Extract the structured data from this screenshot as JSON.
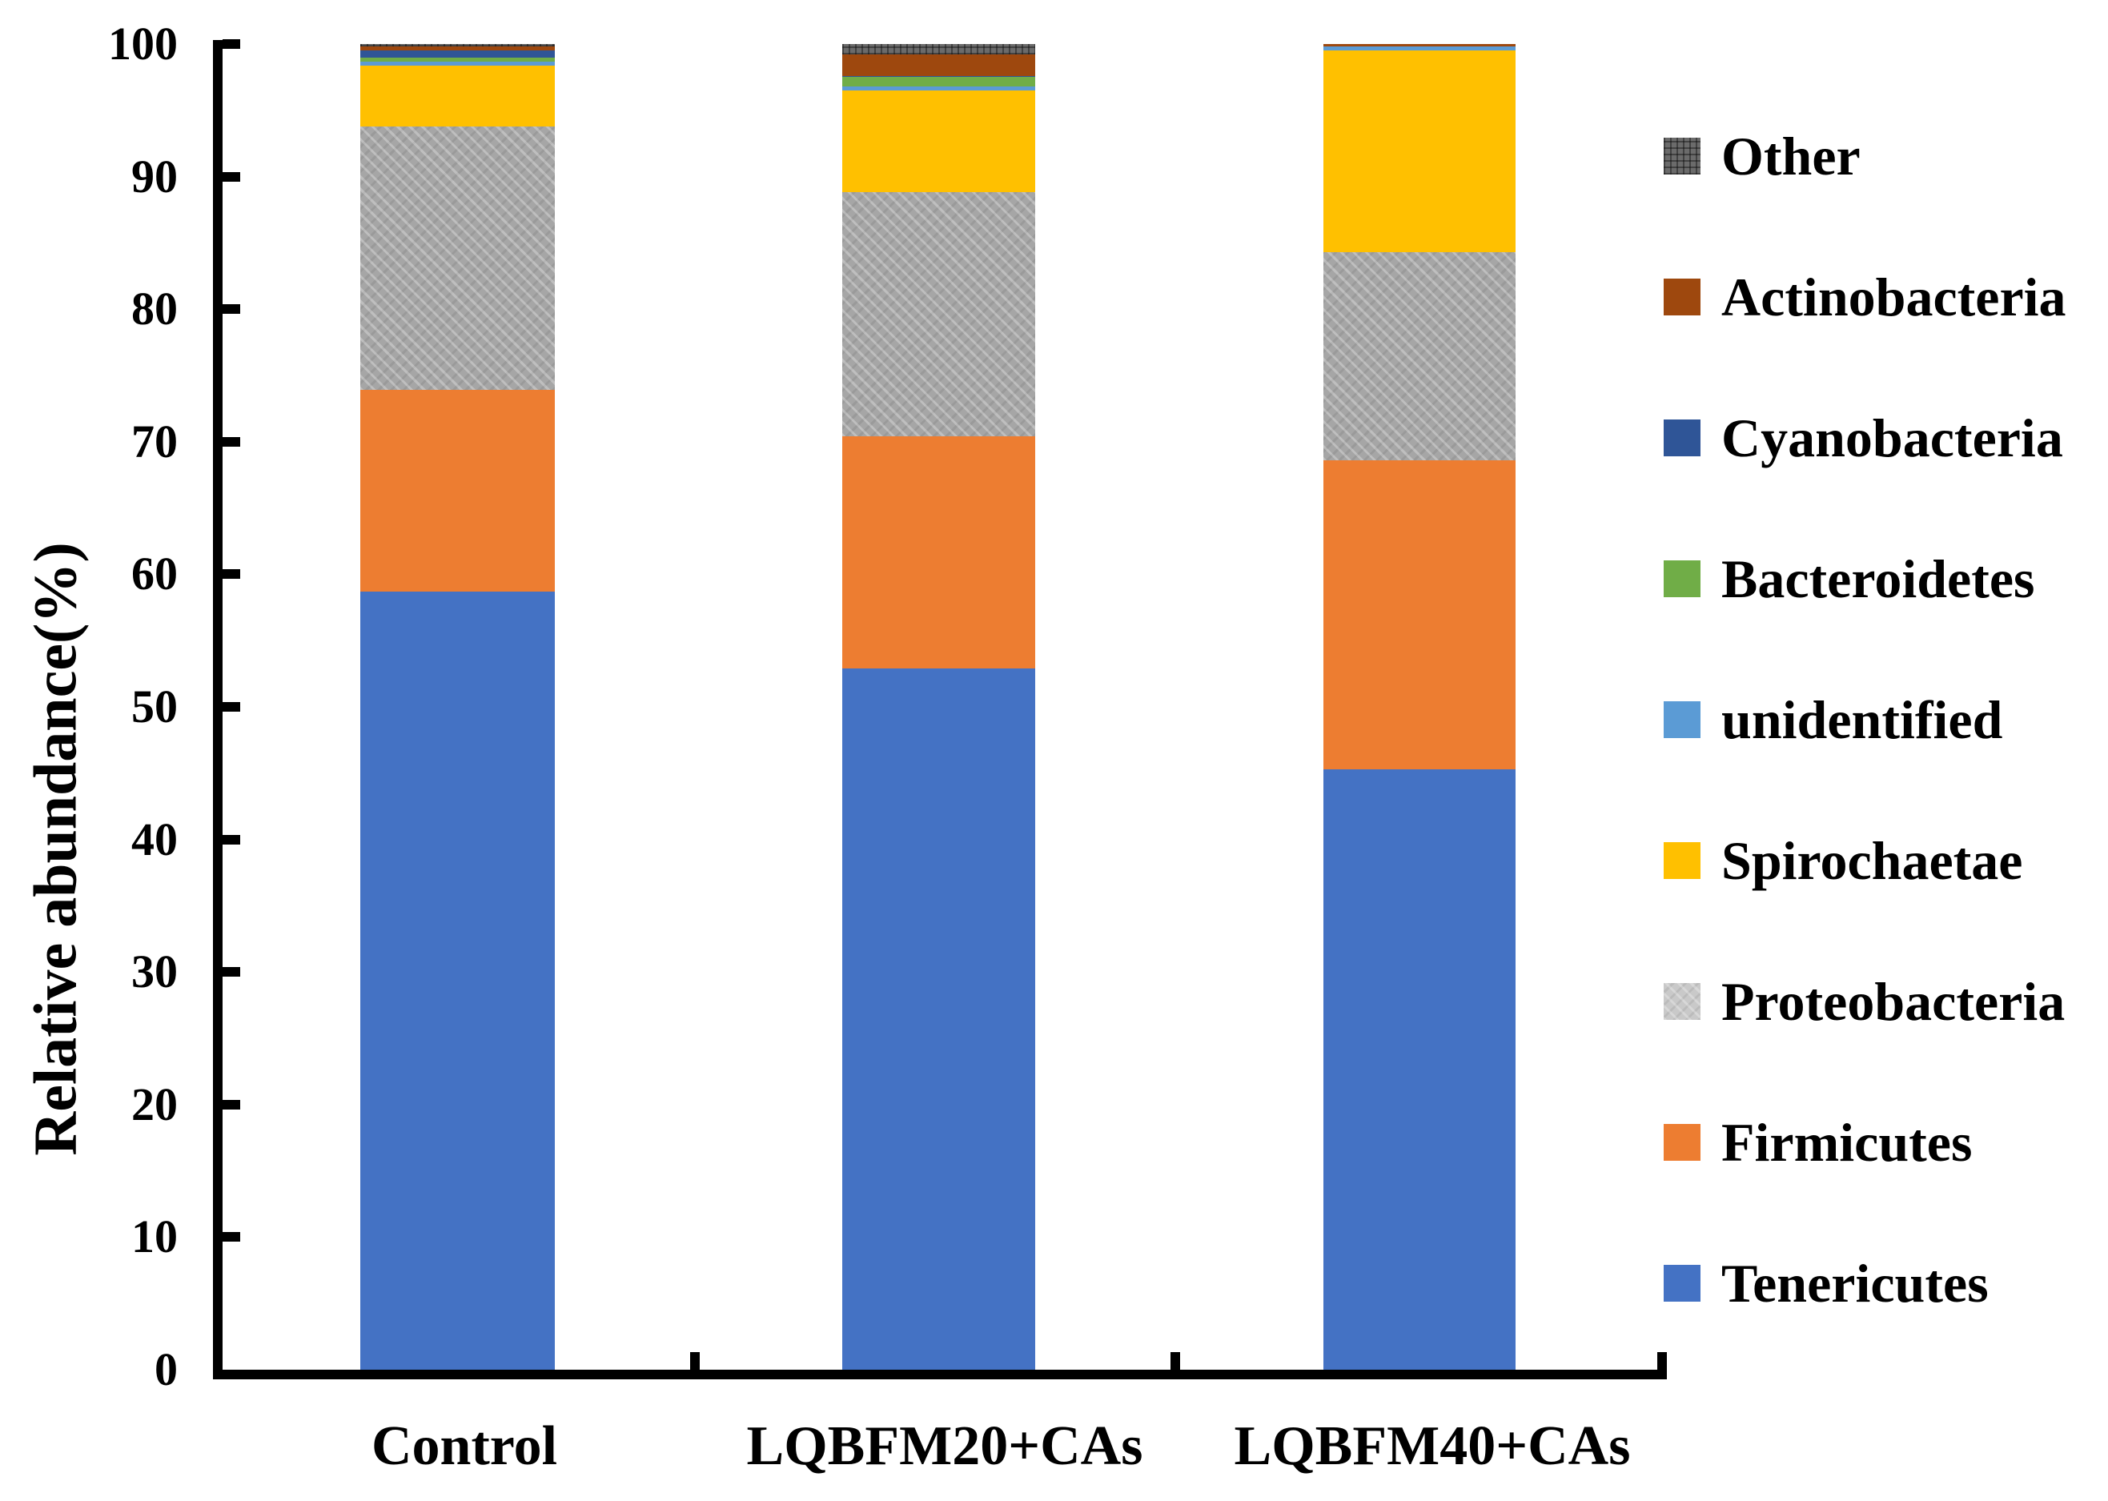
{
  "chart_data": {
    "type": "bar",
    "stacked": true,
    "title": "",
    "xlabel": "",
    "ylabel": "Relative abundance(%)",
    "ylim": [
      0,
      100
    ],
    "yticks": [
      0,
      10,
      20,
      30,
      40,
      50,
      60,
      70,
      80,
      90,
      100
    ],
    "grid": false,
    "legend_position": "right",
    "categories": [
      "Control",
      "LQBFM20+CAs",
      "LQBFM40+CAs"
    ],
    "series": [
      {
        "name": "Tenericutes",
        "color": "#4472C4",
        "pattern": "none",
        "values": [
          58.7,
          52.9,
          45.3
        ]
      },
      {
        "name": "Firmicutes",
        "color": "#ED7D31",
        "pattern": "none",
        "values": [
          15.2,
          17.5,
          23.3
        ]
      },
      {
        "name": "Proteobacteria",
        "color": "#A6A6A6",
        "pattern": "hatch",
        "values": [
          19.9,
          18.4,
          15.7
        ]
      },
      {
        "name": "Spirochaetae",
        "color": "#FFC000",
        "pattern": "none",
        "values": [
          4.6,
          7.7,
          15.2
        ]
      },
      {
        "name": "unidentified",
        "color": "#5B9BD5",
        "pattern": "none",
        "values": [
          0.25,
          0.3,
          0.3
        ]
      },
      {
        "name": "Bacteroidetes",
        "color": "#70AD47",
        "pattern": "none",
        "values": [
          0.3,
          0.75,
          0.0
        ]
      },
      {
        "name": "Cyanobacteria",
        "color": "#2F5597",
        "pattern": "none",
        "values": [
          0.6,
          0.05,
          0.0
        ]
      },
      {
        "name": "Actinobacteria",
        "color": "#9E480E",
        "pattern": "none",
        "values": [
          0.25,
          1.6,
          0.2
        ]
      },
      {
        "name": "Other",
        "color": "#6B6B6B",
        "pattern": "grid",
        "values": [
          0.2,
          0.8,
          0.0
        ]
      }
    ],
    "legend_order_top_to_bottom": [
      "Other",
      "Actinobacteria",
      "Cyanobacteria",
      "Bacteroidetes",
      "unidentified",
      "Spirochaetae",
      "Proteobacteria",
      "Firmicutes",
      "Tenericutes"
    ],
    "legend_swatch_colors": {
      "Other": "#6B6B6B",
      "Actinobacteria": "#9E480E",
      "Cyanobacteria": "#2F5597",
      "Bacteroidetes": "#70AD47",
      "unidentified": "#5B9BD5",
      "Spirochaetae": "#FFC000",
      "Proteobacteria": "#C9C9C9",
      "Firmicutes": "#ED7D31",
      "Tenericutes": "#4472C4"
    }
  }
}
